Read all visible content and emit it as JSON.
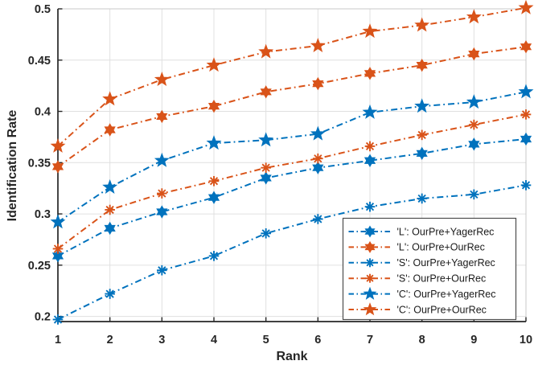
{
  "chart_data": {
    "type": "line",
    "title": "",
    "xlabel": "Rank",
    "ylabel": "Identification Rate",
    "x": [
      1,
      2,
      3,
      4,
      5,
      6,
      7,
      8,
      9,
      10
    ],
    "xticklabels": [
      "1",
      "2",
      "3",
      "4",
      "5",
      "6",
      "7",
      "8",
      "9",
      "10"
    ],
    "yticks": [
      0.2,
      0.25,
      0.3,
      0.35,
      0.4,
      0.45,
      0.5
    ],
    "yticklabels": [
      "0.2",
      "0.25",
      "0.3",
      "0.35",
      "0.4",
      "0.45",
      "0.5"
    ],
    "xlim": [
      1,
      10
    ],
    "ylim": [
      0.195,
      0.5
    ],
    "grid": true,
    "line_style": "dash-dot",
    "legend_position": "lower-right",
    "axis_color": "#262626",
    "grid_color": "#e0e0e0",
    "colors": {
      "blue": "#0072BD",
      "orange": "#D95319"
    },
    "series": [
      {
        "name": "'L': OurPre+YagerRec",
        "color": "#0072BD",
        "marker": "hexagram",
        "values": [
          0.259,
          0.286,
          0.302,
          0.316,
          0.335,
          0.345,
          0.352,
          0.359,
          0.368,
          0.373
        ]
      },
      {
        "name": "'L': OurPre+OurRec",
        "color": "#D95319",
        "marker": "hexagram",
        "values": [
          0.346,
          0.382,
          0.395,
          0.405,
          0.419,
          0.427,
          0.437,
          0.445,
          0.456,
          0.463
        ]
      },
      {
        "name": "'S': OurPre+YagerRec",
        "color": "#0072BD",
        "marker": "asterisk",
        "values": [
          0.197,
          0.222,
          0.245,
          0.259,
          0.281,
          0.295,
          0.307,
          0.315,
          0.319,
          0.328
        ]
      },
      {
        "name": "'S': OurPre+OurRec",
        "color": "#D95319",
        "marker": "asterisk",
        "values": [
          0.266,
          0.304,
          0.32,
          0.332,
          0.345,
          0.354,
          0.366,
          0.377,
          0.387,
          0.397
        ]
      },
      {
        "name": "'C': OurPre+YagerRec",
        "color": "#0072BD",
        "marker": "pentagram",
        "values": [
          0.292,
          0.326,
          0.352,
          0.369,
          0.372,
          0.378,
          0.399,
          0.405,
          0.409,
          0.419
        ]
      },
      {
        "name": "'C': OurPre+OurRec",
        "color": "#D95319",
        "marker": "pentagram",
        "values": [
          0.366,
          0.412,
          0.431,
          0.445,
          0.458,
          0.464,
          0.478,
          0.484,
          0.492,
          0.501
        ]
      }
    ]
  }
}
